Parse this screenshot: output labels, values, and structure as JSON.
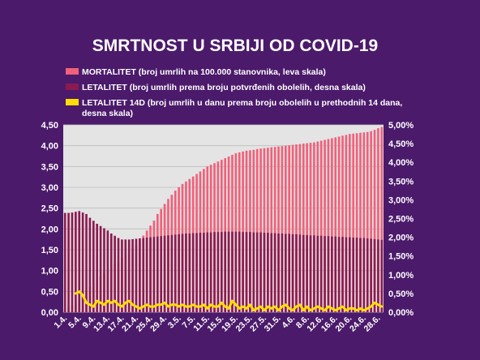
{
  "chart_data": {
    "type": "bar+line",
    "title": "SMRTNOST U SRBIJI OD COVID-19",
    "legend_position": "top",
    "grid": true,
    "categories": [
      "1.4.",
      "2.4.",
      "3.4.",
      "4.4.",
      "5.4.",
      "6.4.",
      "7.4.",
      "8.4.",
      "9.4.",
      "10.4.",
      "11.4.",
      "12.4.",
      "13.4.",
      "14.4.",
      "15.4.",
      "16.4.",
      "17.4.",
      "18.4.",
      "19.4.",
      "20.4.",
      "21.4.",
      "22.4.",
      "23.4.",
      "24.4.",
      "25.4.",
      "26.4.",
      "27.4.",
      "28.4.",
      "29.4.",
      "30.4.",
      "1.5.",
      "2.5.",
      "3.5.",
      "4.5.",
      "5.5.",
      "6.5.",
      "7.5.",
      "8.5.",
      "9.5.",
      "10.5.",
      "11.5.",
      "12.5.",
      "13.5.",
      "14.5.",
      "15.5.",
      "16.5.",
      "17.5.",
      "18.5.",
      "19.5.",
      "20.5.",
      "21.5.",
      "22.5.",
      "23.5.",
      "24.5.",
      "25.5.",
      "26.5.",
      "27.5.",
      "28.5.",
      "29.5.",
      "30.5.",
      "31.5.",
      "1.6.",
      "2.6.",
      "3.6.",
      "4.6.",
      "5.6.",
      "6.6.",
      "7.6.",
      "8.6.",
      "9.6.",
      "10.6.",
      "11.6.",
      "12.6.",
      "13.6.",
      "14.6.",
      "15.6.",
      "16.6.",
      "17.6.",
      "18.6.",
      "19.6.",
      "20.6.",
      "21.6.",
      "22.6.",
      "23.6.",
      "24.6.",
      "25.6.",
      "26.6.",
      "27.6.",
      "28.6.",
      "29.6."
    ],
    "x_tick_labels": [
      "1.4.",
      "5.4.",
      "9.4.",
      "13.4.",
      "17.4.",
      "21.4.",
      "25.4.",
      "29.4.",
      "3.5.",
      "7.5.",
      "11.5.",
      "15.5.",
      "19.5.",
      "23.5.",
      "27.5.",
      "31.5.",
      "4.6.",
      "8.6.",
      "12.6.",
      "16.6.",
      "20.6.",
      "24.6.",
      "28.6."
    ],
    "y_left": {
      "min": 0,
      "max": 4.5,
      "ticks": [
        "0,00",
        "0,50",
        "1,00",
        "1,50",
        "2,00",
        "2,50",
        "3,00",
        "3,50",
        "4,00",
        "4,50"
      ]
    },
    "y_right": {
      "min": 0,
      "max": 0.05,
      "ticks": [
        "0,00%",
        "0,50%",
        "1,00%",
        "1,50%",
        "2,00%",
        "2,50%",
        "3,00%",
        "3,50%",
        "4,00%",
        "4,50%",
        "5,00%"
      ]
    },
    "series": [
      {
        "name": "MORTALITET (broj umrlih na 100.000 stanovnika, leva skala)",
        "axis": "left",
        "kind": "bar",
        "color": "#f0607a",
        "values": [
          0.08,
          0.12,
          0.16,
          0.22,
          0.3,
          0.42,
          0.52,
          0.62,
          0.7,
          0.78,
          0.86,
          0.94,
          1.02,
          1.08,
          1.16,
          1.22,
          1.3,
          1.38,
          1.46,
          1.54,
          1.62,
          1.72,
          1.84,
          1.96,
          2.08,
          2.2,
          2.36,
          2.48,
          2.6,
          2.72,
          2.82,
          2.92,
          3.0,
          3.08,
          3.14,
          3.2,
          3.26,
          3.32,
          3.38,
          3.44,
          3.5,
          3.54,
          3.58,
          3.62,
          3.66,
          3.7,
          3.74,
          3.78,
          3.82,
          3.84,
          3.86,
          3.88,
          3.89,
          3.9,
          3.92,
          3.93,
          3.94,
          3.95,
          3.96,
          3.97,
          3.98,
          3.99,
          4.0,
          4.01,
          4.02,
          4.03,
          4.04,
          4.05,
          4.06,
          4.07,
          4.08,
          4.1,
          4.12,
          4.14,
          4.16,
          4.18,
          4.2,
          4.22,
          4.24,
          4.26,
          4.28,
          4.29,
          4.3,
          4.31,
          4.32,
          4.33,
          4.35,
          4.38,
          4.42,
          4.45
        ]
      },
      {
        "name": "LETALITET (broj umrlih prema broju potvrđenih obolelih, desna skala)",
        "axis": "right",
        "kind": "bar",
        "color": "#8b1a50",
        "values": [
          0.0265,
          0.0265,
          0.0266,
          0.0268,
          0.027,
          0.0266,
          0.0262,
          0.0252,
          0.0244,
          0.0236,
          0.023,
          0.0224,
          0.0218,
          0.021,
          0.0204,
          0.0198,
          0.0194,
          0.0194,
          0.0194,
          0.0195,
          0.0196,
          0.0197,
          0.0198,
          0.0199,
          0.02,
          0.0201,
          0.0202,
          0.0203,
          0.0204,
          0.0205,
          0.0206,
          0.0207,
          0.0208,
          0.0209,
          0.021,
          0.021,
          0.0211,
          0.0211,
          0.0212,
          0.0212,
          0.0213,
          0.0213,
          0.0214,
          0.0214,
          0.0214,
          0.0215,
          0.0215,
          0.0215,
          0.0215,
          0.0215,
          0.0214,
          0.0214,
          0.0214,
          0.0213,
          0.0213,
          0.0213,
          0.0212,
          0.0212,
          0.0211,
          0.0211,
          0.021,
          0.021,
          0.0209,
          0.0209,
          0.0208,
          0.0208,
          0.0207,
          0.0206,
          0.0206,
          0.0205,
          0.0205,
          0.0204,
          0.0204,
          0.0203,
          0.0203,
          0.0202,
          0.0202,
          0.0201,
          0.0201,
          0.02,
          0.02,
          0.0199,
          0.0199,
          0.0198,
          0.0198,
          0.0197,
          0.0196,
          0.0195,
          0.0194,
          0.0193
        ]
      },
      {
        "name": "LETALITET 14D (broj umrlih u danu prema broju obolelih u prethodnih 14 dana, desna skala)",
        "axis": "right",
        "kind": "line",
        "color": "#ffdd00",
        "values": [
          null,
          null,
          null,
          0.005,
          0.0055,
          0.0045,
          0.0025,
          0.002,
          0.0015,
          0.003,
          0.0025,
          0.002,
          0.003,
          0.0025,
          0.003,
          0.002,
          0.0015,
          0.0025,
          0.003,
          0.002,
          0.0015,
          0.001,
          0.0015,
          0.002,
          0.0015,
          0.0015,
          0.002,
          0.002,
          0.0025,
          0.0015,
          0.002,
          0.002,
          0.0015,
          0.002,
          0.0015,
          0.0015,
          0.002,
          0.0015,
          0.0015,
          0.002,
          0.001,
          0.002,
          0.0015,
          0.0015,
          0.0025,
          0.0015,
          0.001,
          0.003,
          0.002,
          0.001,
          0.0015,
          0.001,
          0.002,
          0.0005,
          0.001,
          0.0015,
          0.0005,
          0.0015,
          0.001,
          0.0015,
          0.0005,
          0.0015,
          0.002,
          0.001,
          0.0005,
          0.0015,
          0.002,
          0.0005,
          0.0015,
          0.0005,
          0.001,
          0.0015,
          0.001,
          0.0005,
          0.0015,
          0.001,
          0.0005,
          0.001,
          0.0015,
          0.0005,
          0.001,
          0.001,
          0.0005,
          0.001,
          0.0005,
          0.001,
          0.0015,
          0.0025,
          0.002,
          0.0015
        ]
      }
    ]
  }
}
